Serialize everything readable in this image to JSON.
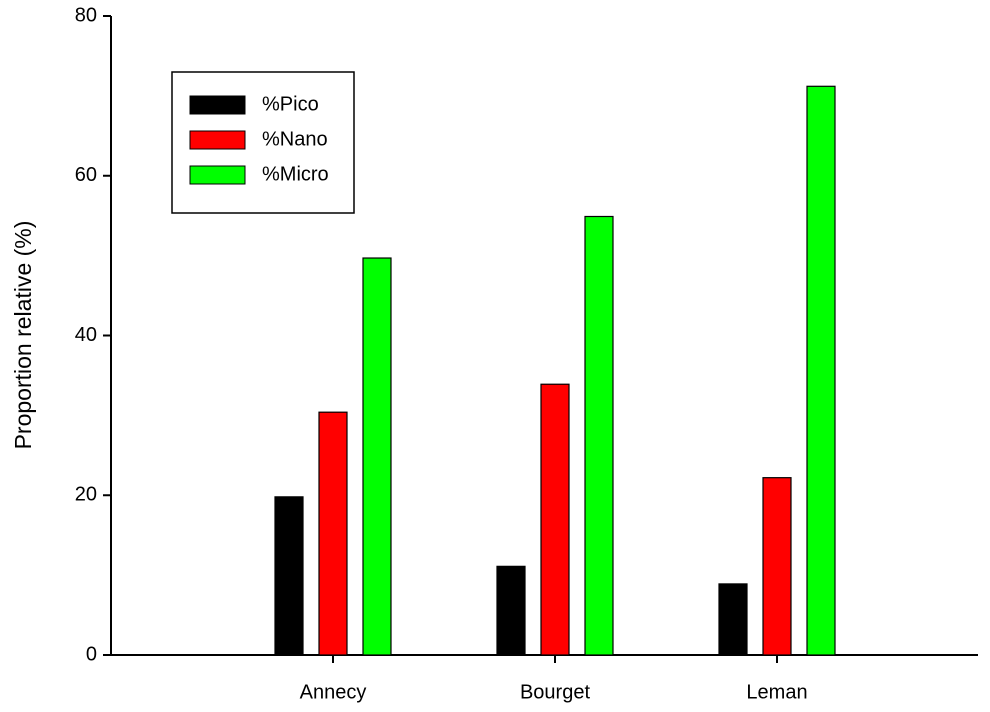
{
  "chart_data": {
    "type": "bar",
    "y_label": "Proportion relative (%)",
    "categories": [
      "Annecy",
      "Bourget",
      "Leman"
    ],
    "series": [
      {
        "name": "%Pico",
        "color": "#000000",
        "values": [
          19.8,
          11.1,
          8.9
        ]
      },
      {
        "name": "%Nano",
        "color": "#ff0000",
        "values": [
          30.4,
          33.9,
          22.2
        ]
      },
      {
        "name": "%Micro",
        "color": "#00ff00",
        "values": [
          49.7,
          54.9,
          71.2
        ]
      }
    ],
    "ylim": [
      0,
      80
    ],
    "yticks": [
      0,
      20,
      40,
      60,
      80
    ],
    "legend": "upper left"
  }
}
